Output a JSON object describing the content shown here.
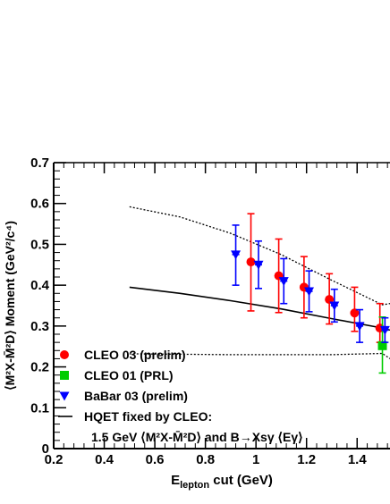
{
  "chart_data": {
    "type": "scatter",
    "xlabel_main": "E",
    "xlabel_sub": "lepton",
    "xlabel_rest": " cut (GeV)",
    "ylabel": "⟨M²X-M̄²D⟩ Moment (GeV²/c⁴)",
    "xlim": [
      0.2,
      1.53
    ],
    "ylim": [
      0,
      0.7
    ],
    "xticks": [
      "0.2",
      "0.4",
      "0.6",
      "0.8",
      "1",
      "1.2",
      "1.4"
    ],
    "yticks": [
      "0",
      "0.1",
      "0.2",
      "0.3",
      "0.4",
      "0.5",
      "0.6",
      "0.7"
    ],
    "series": [
      {
        "name": "CLEO 03 (prelim)",
        "marker": "circle",
        "color": "#ff0000",
        "x": [
          0.98,
          1.09,
          1.19,
          1.29,
          1.39,
          1.49
        ],
        "y": [
          0.457,
          0.423,
          0.395,
          0.365,
          0.332,
          0.295
        ],
        "yerr_low": [
          0.12,
          0.09,
          0.075,
          0.06,
          0.045,
          0.035
        ],
        "yerr_high": [
          0.118,
          0.09,
          0.075,
          0.063,
          0.063,
          0.06
        ]
      },
      {
        "name": "CLEO 01 (PRL)",
        "marker": "square",
        "color": "#00cc00",
        "x": [
          1.5
        ],
        "y": [
          0.252
        ],
        "yerr_low": [
          0.067
        ],
        "yerr_high": [
          0.07
        ]
      },
      {
        "name": "BaBar 03 (prelim)",
        "marker": "triangle-down",
        "color": "#0000ff",
        "x": [
          0.92,
          1.01,
          1.11,
          1.21,
          1.31,
          1.41,
          1.51
        ],
        "y": [
          0.475,
          0.45,
          0.41,
          0.385,
          0.35,
          0.3,
          0.29
        ],
        "yerr_low": [
          0.075,
          0.058,
          0.055,
          0.05,
          0.04,
          0.04,
          0.03
        ],
        "yerr_high": [
          0.072,
          0.058,
          0.055,
          0.05,
          0.04,
          0.04,
          0.03
        ]
      }
    ],
    "hqet_curve": {
      "x": [
        0.5,
        0.7,
        0.9,
        1.1,
        1.3,
        1.5,
        1.53
      ],
      "central": [
        0.395,
        0.38,
        0.362,
        0.342,
        0.318,
        0.295,
        0.29
      ],
      "upper": [
        0.592,
        0.567,
        0.527,
        0.475,
        0.412,
        0.352,
        0.355
      ],
      "lower": [
        0.232,
        0.231,
        0.23,
        0.23,
        0.23,
        0.233,
        0.22
      ]
    },
    "legend": {
      "placement": "bottom-left",
      "entries": [
        {
          "marker": "circle",
          "color": "#ff0000",
          "label": "CLEO 03 (prelim)"
        },
        {
          "marker": "square",
          "color": "#00cc00",
          "label": "CLEO 01 (PRL)"
        },
        {
          "marker": "triangle-down",
          "color": "#0000ff",
          "label": "BaBar 03 (prelim)"
        },
        {
          "marker": "line",
          "color": "#000000",
          "label": "HQET fixed by CLEO:"
        }
      ],
      "continuation": "1.5 GeV ⟨M²X-M̄²D⟩ and B→Xsγ ⟨Eγ⟩"
    }
  }
}
